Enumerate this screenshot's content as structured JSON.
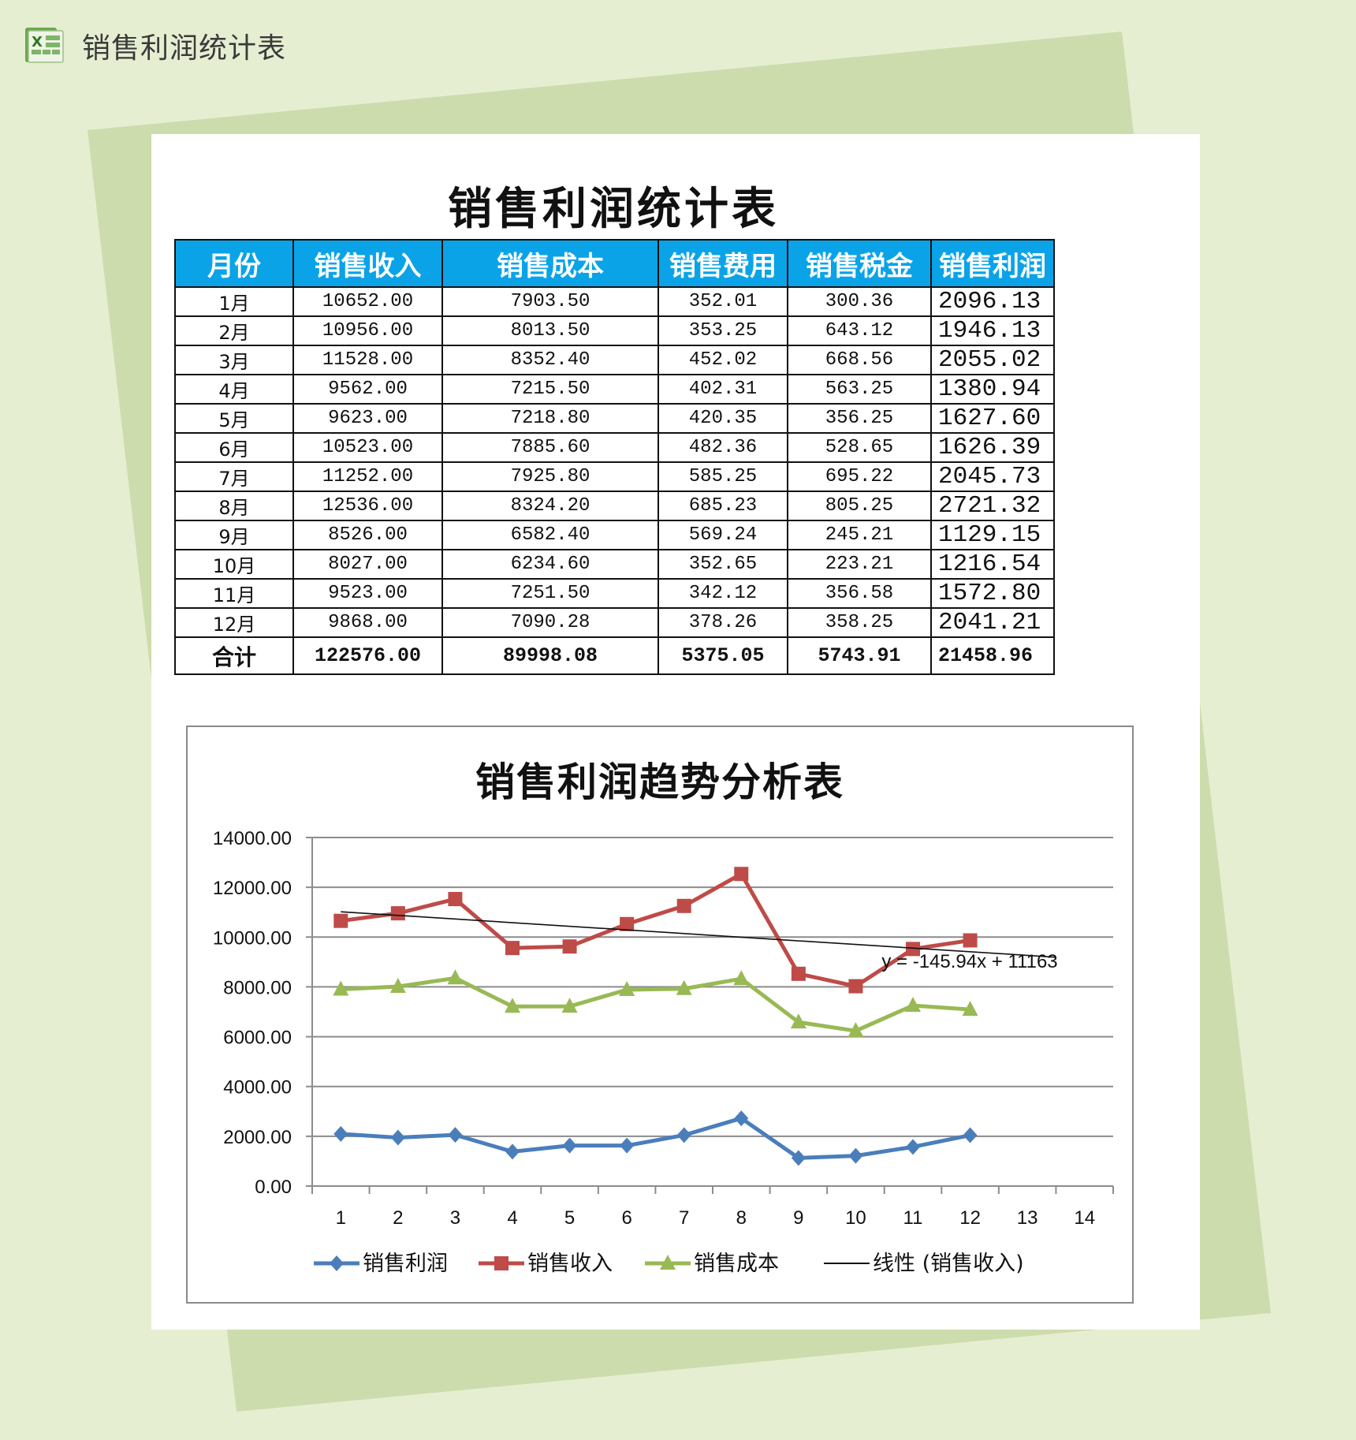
{
  "app": {
    "title": "销售利润统计表",
    "icon": "excel-icon"
  },
  "sheet": {
    "title": "销售利润统计表",
    "columns": [
      "月份",
      "销售收入",
      "销售成本",
      "销售费用",
      "销售税金",
      "销售利润"
    ],
    "rows": [
      [
        "1月",
        "10652.00",
        "7903.50",
        "352.01",
        "300.36",
        "2096.13"
      ],
      [
        "2月",
        "10956.00",
        "8013.50",
        "353.25",
        "643.12",
        "1946.13"
      ],
      [
        "3月",
        "11528.00",
        "8352.40",
        "452.02",
        "668.56",
        "2055.02"
      ],
      [
        "4月",
        "9562.00",
        "7215.50",
        "402.31",
        "563.25",
        "1380.94"
      ],
      [
        "5月",
        "9623.00",
        "7218.80",
        "420.35",
        "356.25",
        "1627.60"
      ],
      [
        "6月",
        "10523.00",
        "7885.60",
        "482.36",
        "528.65",
        "1626.39"
      ],
      [
        "7月",
        "11252.00",
        "7925.80",
        "585.25",
        "695.22",
        "2045.73"
      ],
      [
        "8月",
        "12536.00",
        "8324.20",
        "685.23",
        "805.25",
        "2721.32"
      ],
      [
        "9月",
        "8526.00",
        "6582.40",
        "569.24",
        "245.21",
        "1129.15"
      ],
      [
        "10月",
        "8027.00",
        "6234.60",
        "352.65",
        "223.21",
        "1216.54"
      ],
      [
        "11月",
        "9523.00",
        "7251.50",
        "342.12",
        "356.58",
        "1572.80"
      ],
      [
        "12月",
        "9868.00",
        "7090.28",
        "378.26",
        "358.25",
        "2041.21"
      ]
    ],
    "total": [
      "合计",
      "122576.00",
      "89998.08",
      "5375.05",
      "5743.91",
      "21458.96"
    ]
  },
  "chart_data": {
    "type": "line",
    "title": "销售利润趋势分析表",
    "xlabel": "",
    "ylabel": "",
    "x": [
      1,
      2,
      3,
      4,
      5,
      6,
      7,
      8,
      9,
      10,
      11,
      12
    ],
    "x_ticks": [
      "1",
      "2",
      "3",
      "4",
      "5",
      "6",
      "7",
      "8",
      "9",
      "10",
      "11",
      "12",
      "13",
      "14"
    ],
    "y_ticks": [
      "0.00",
      "2000.00",
      "4000.00",
      "6000.00",
      "8000.00",
      "10000.00",
      "12000.00",
      "14000.00"
    ],
    "ylim": [
      0,
      14000
    ],
    "xlim": [
      0.5,
      14.5
    ],
    "grid": true,
    "legend_position": "bottom",
    "series": [
      {
        "name": "销售利润",
        "color": "#4a7ebb",
        "marker": "diamond",
        "values": [
          2096.13,
          1946.13,
          2055.02,
          1380.94,
          1627.6,
          1626.39,
          2045.73,
          2721.32,
          1129.15,
          1216.54,
          1572.8,
          2041.21
        ]
      },
      {
        "name": "销售收入",
        "color": "#be4b48",
        "marker": "square",
        "values": [
          10652,
          10956,
          11528,
          9562,
          9623,
          10523,
          11252,
          12536,
          8526,
          8027,
          9523,
          9868
        ]
      },
      {
        "name": "销售成本",
        "color": "#98b954",
        "marker": "triangle",
        "values": [
          7903.5,
          8013.5,
          8352.4,
          7215.5,
          7218.8,
          7885.6,
          7925.8,
          8324.2,
          6582.4,
          6234.6,
          7251.5,
          7090.28
        ]
      }
    ],
    "trendline": {
      "name": "线性 (销售收入)",
      "color": "#111111",
      "slope": -145.94,
      "intercept": 11163,
      "x_range": [
        1,
        13.5
      ],
      "equation": "y = -145.94x + 11163"
    },
    "legend": [
      "销售利润",
      "销售收入",
      "销售成本",
      "线性 (销售收入)"
    ]
  },
  "colors": {
    "background": "#e6eed2",
    "shape": "#cddcac",
    "header_fill": "#0aa3e8"
  }
}
